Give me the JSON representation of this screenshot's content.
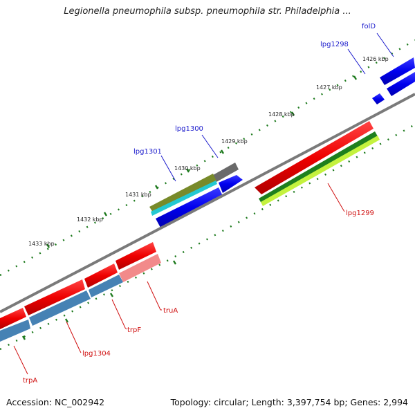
{
  "title": "Legionella pneumophila subsp. pneumophila str. Philadelphia ...",
  "footer": {
    "accession": "Accession: NC_002942",
    "summary": "Topology: circular; Length: 3,397,754 bp; Genes: 2,994"
  },
  "colors": {
    "backbone": "#7a7a7a",
    "tick": "#1d7a1d",
    "label_forward": "#1a1acc",
    "label_reverse": "#d01010"
  },
  "scale": [
    {
      "label": "1426 kbp"
    },
    {
      "label": "1427 kbp"
    },
    {
      "label": "1428 kbp"
    },
    {
      "label": "1429 kbp"
    },
    {
      "label": "1430 kbp"
    },
    {
      "label": "1431 kbp"
    },
    {
      "label": "1432 kbp"
    },
    {
      "label": "1433 kbp"
    }
  ],
  "gene_labels": [
    {
      "name": "folD",
      "strand": "forward"
    },
    {
      "name": "lpg1298",
      "strand": "forward"
    },
    {
      "name": "lpg1300",
      "strand": "forward"
    },
    {
      "name": "lpg1301",
      "strand": "forward"
    },
    {
      "name": "lpg1299",
      "strand": "reverse"
    },
    {
      "name": "truA",
      "strand": "reverse"
    },
    {
      "name": "trpF",
      "strand": "reverse"
    },
    {
      "name": "lpg1304",
      "strand": "reverse"
    },
    {
      "name": "trpA",
      "strand": "reverse"
    }
  ]
}
